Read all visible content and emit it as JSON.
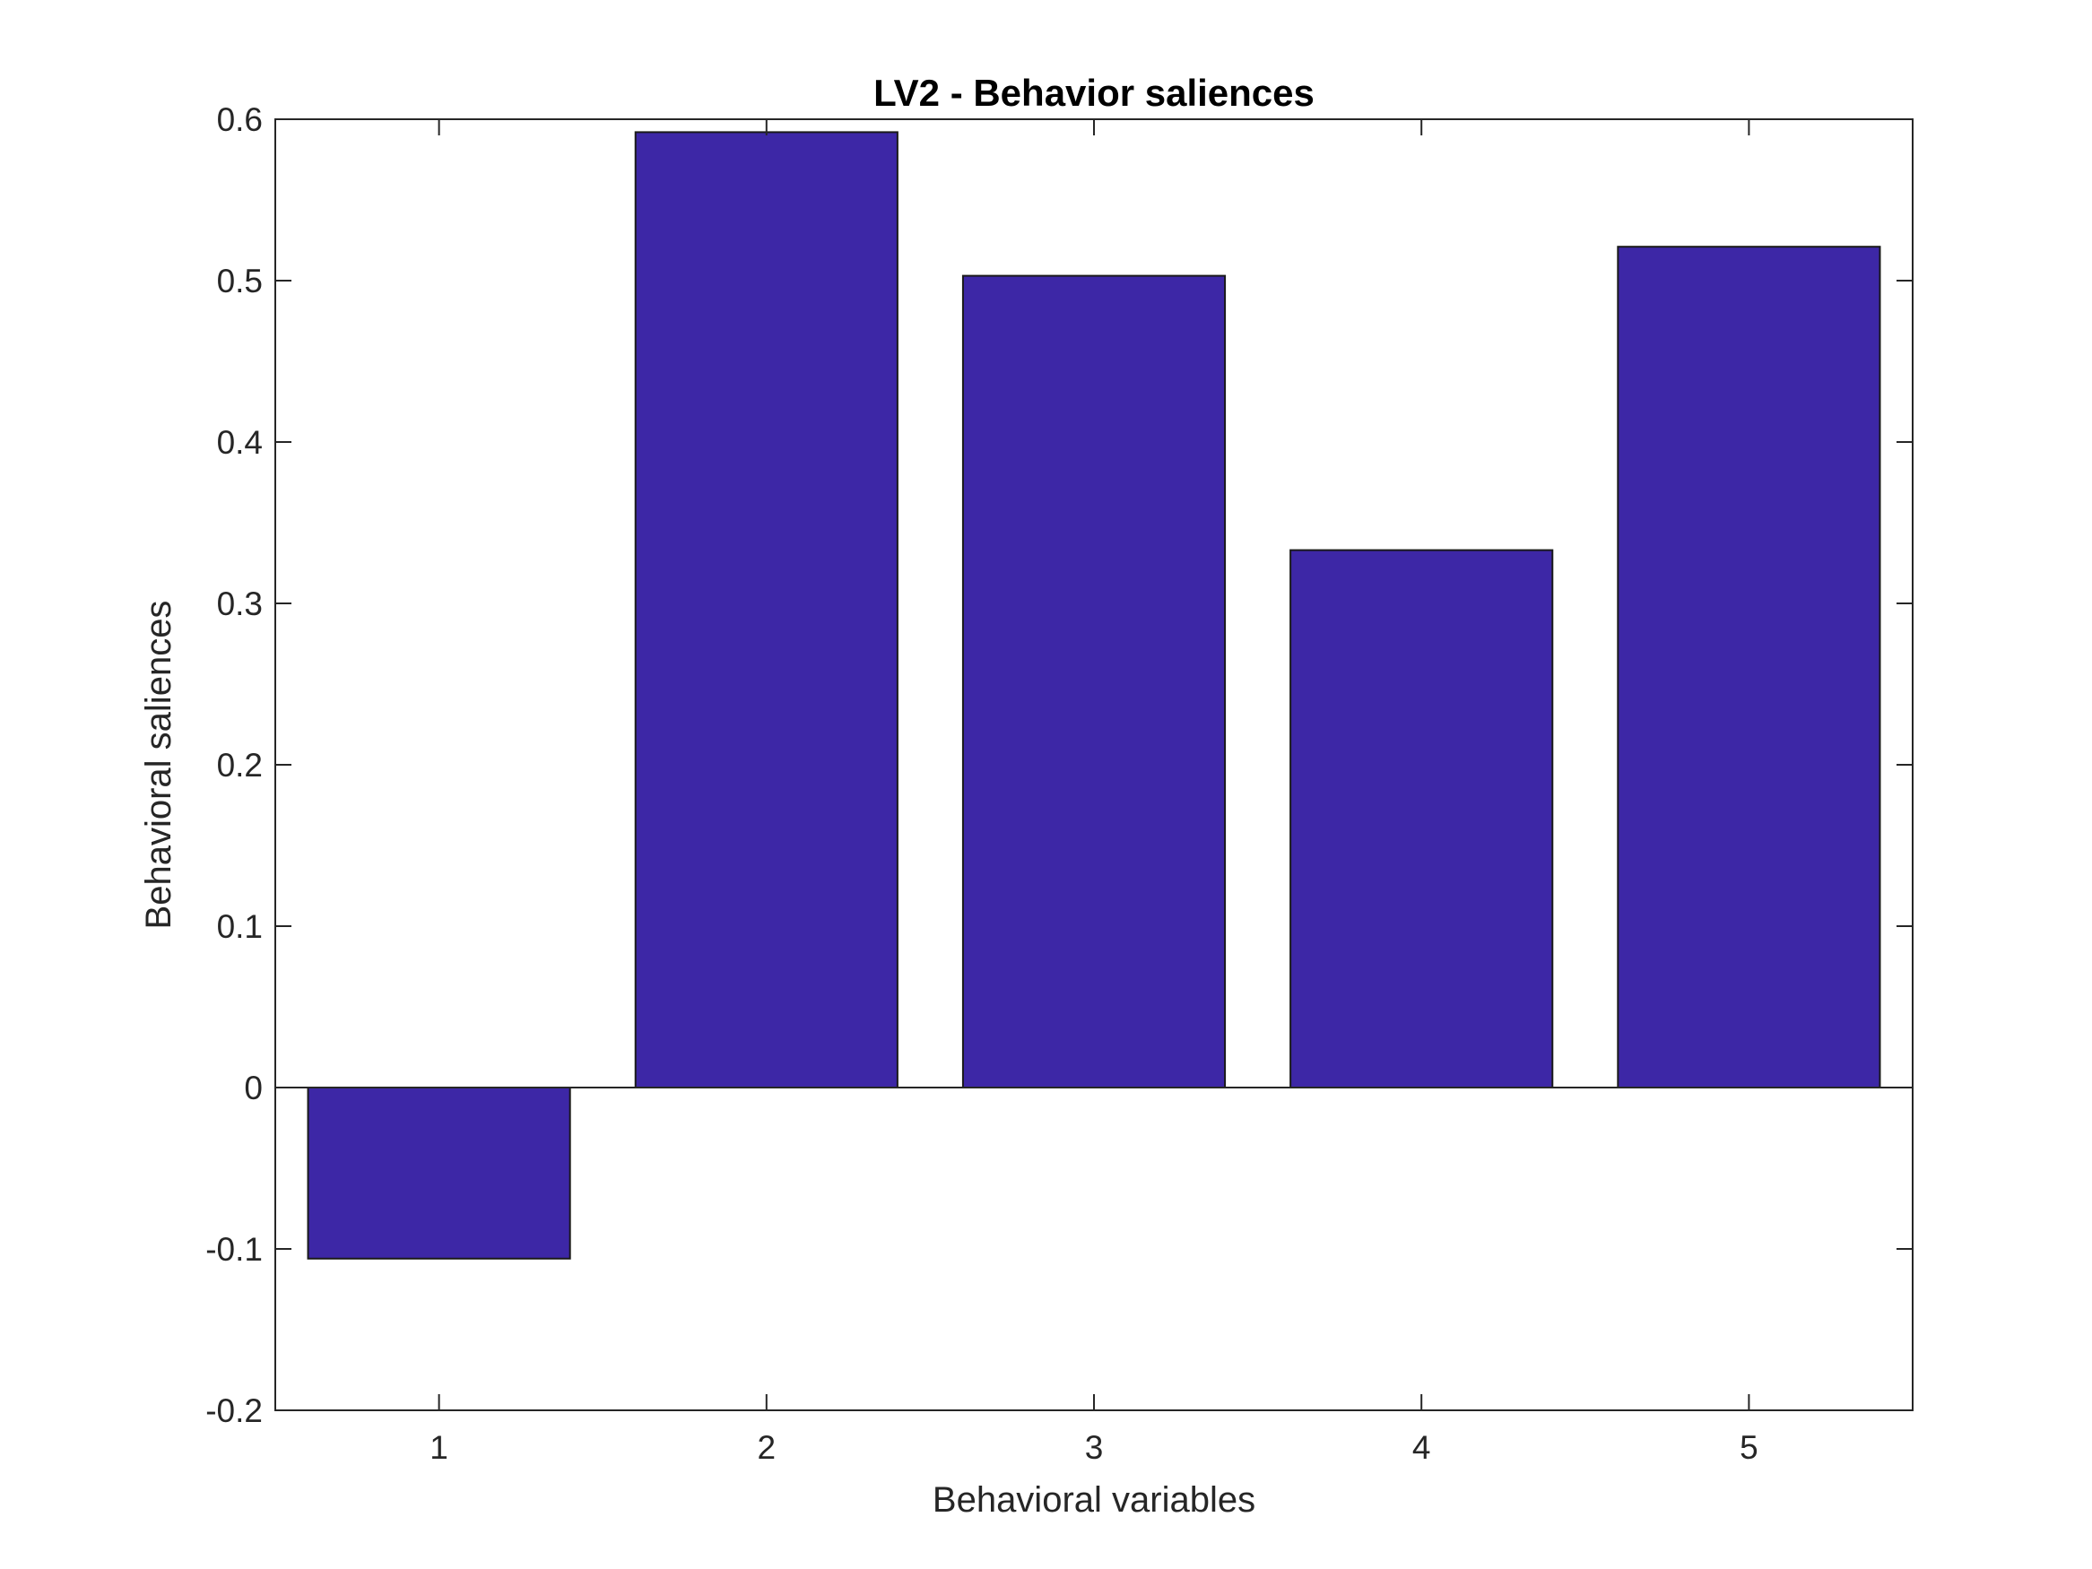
{
  "chart_data": {
    "type": "bar",
    "title": "LV2 - Behavior saliences",
    "xlabel": "Behavioral variables",
    "ylabel": "Behavioral saliences",
    "categories": [
      "1",
      "2",
      "3",
      "4",
      "5"
    ],
    "values": [
      -0.106,
      0.592,
      0.503,
      0.333,
      0.521
    ],
    "ylim": [
      -0.2,
      0.6
    ],
    "yticks": [
      -0.2,
      -0.1,
      0,
      0.1,
      0.2,
      0.3,
      0.4,
      0.5,
      0.6
    ],
    "ytick_labels": [
      "-0.2",
      "-0.1",
      "0",
      "0.1",
      "0.2",
      "0.3",
      "0.4",
      "0.5",
      "0.6"
    ],
    "grid": false,
    "legend": "none",
    "colors": {
      "bar": "#3d27a6",
      "bar_edge": "#1a1a1a",
      "axis": "#262626"
    }
  }
}
